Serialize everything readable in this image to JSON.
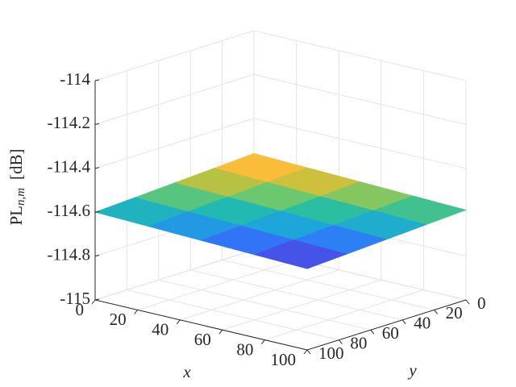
{
  "chart_data": {
    "type": "surface",
    "xlabel": "x",
    "ylabel": "y",
    "zlabel": {
      "main": "PL",
      "sub": "n,m",
      "unit": "[dB]"
    },
    "x": [
      0,
      25,
      50,
      75,
      100
    ],
    "y": [
      0,
      25,
      50,
      75,
      100
    ],
    "z": [
      [
        -114.56,
        -114.5675,
        -114.575,
        -114.5825,
        -114.59
      ],
      [
        -114.57,
        -114.5775,
        -114.585,
        -114.5925,
        -114.6
      ],
      [
        -114.58,
        -114.5875,
        -114.595,
        -114.6025,
        -114.61
      ],
      [
        -114.59,
        -114.5975,
        -114.605,
        -114.6125,
        -114.62
      ],
      [
        -114.6,
        -114.6075,
        -114.615,
        -114.6225,
        -114.63
      ]
    ],
    "xlim": [
      0,
      100
    ],
    "ylim": [
      0,
      100
    ],
    "zlim": [
      -115,
      -114
    ],
    "xticks": [
      0,
      20,
      40,
      60,
      80,
      100
    ],
    "yticks": [
      0,
      20,
      40,
      60,
      80,
      100
    ],
    "zticks": [
      -115,
      -114.8,
      -114.6,
      -114.4,
      -114.2,
      -114
    ],
    "grid": true,
    "colormap": [
      "#3e26a8",
      "#4653e9",
      "#2f7af8",
      "#1ea6db",
      "#21bcaa",
      "#6cc86e",
      "#c4c03c",
      "#f9bd3a",
      "#f9fb14"
    ]
  }
}
